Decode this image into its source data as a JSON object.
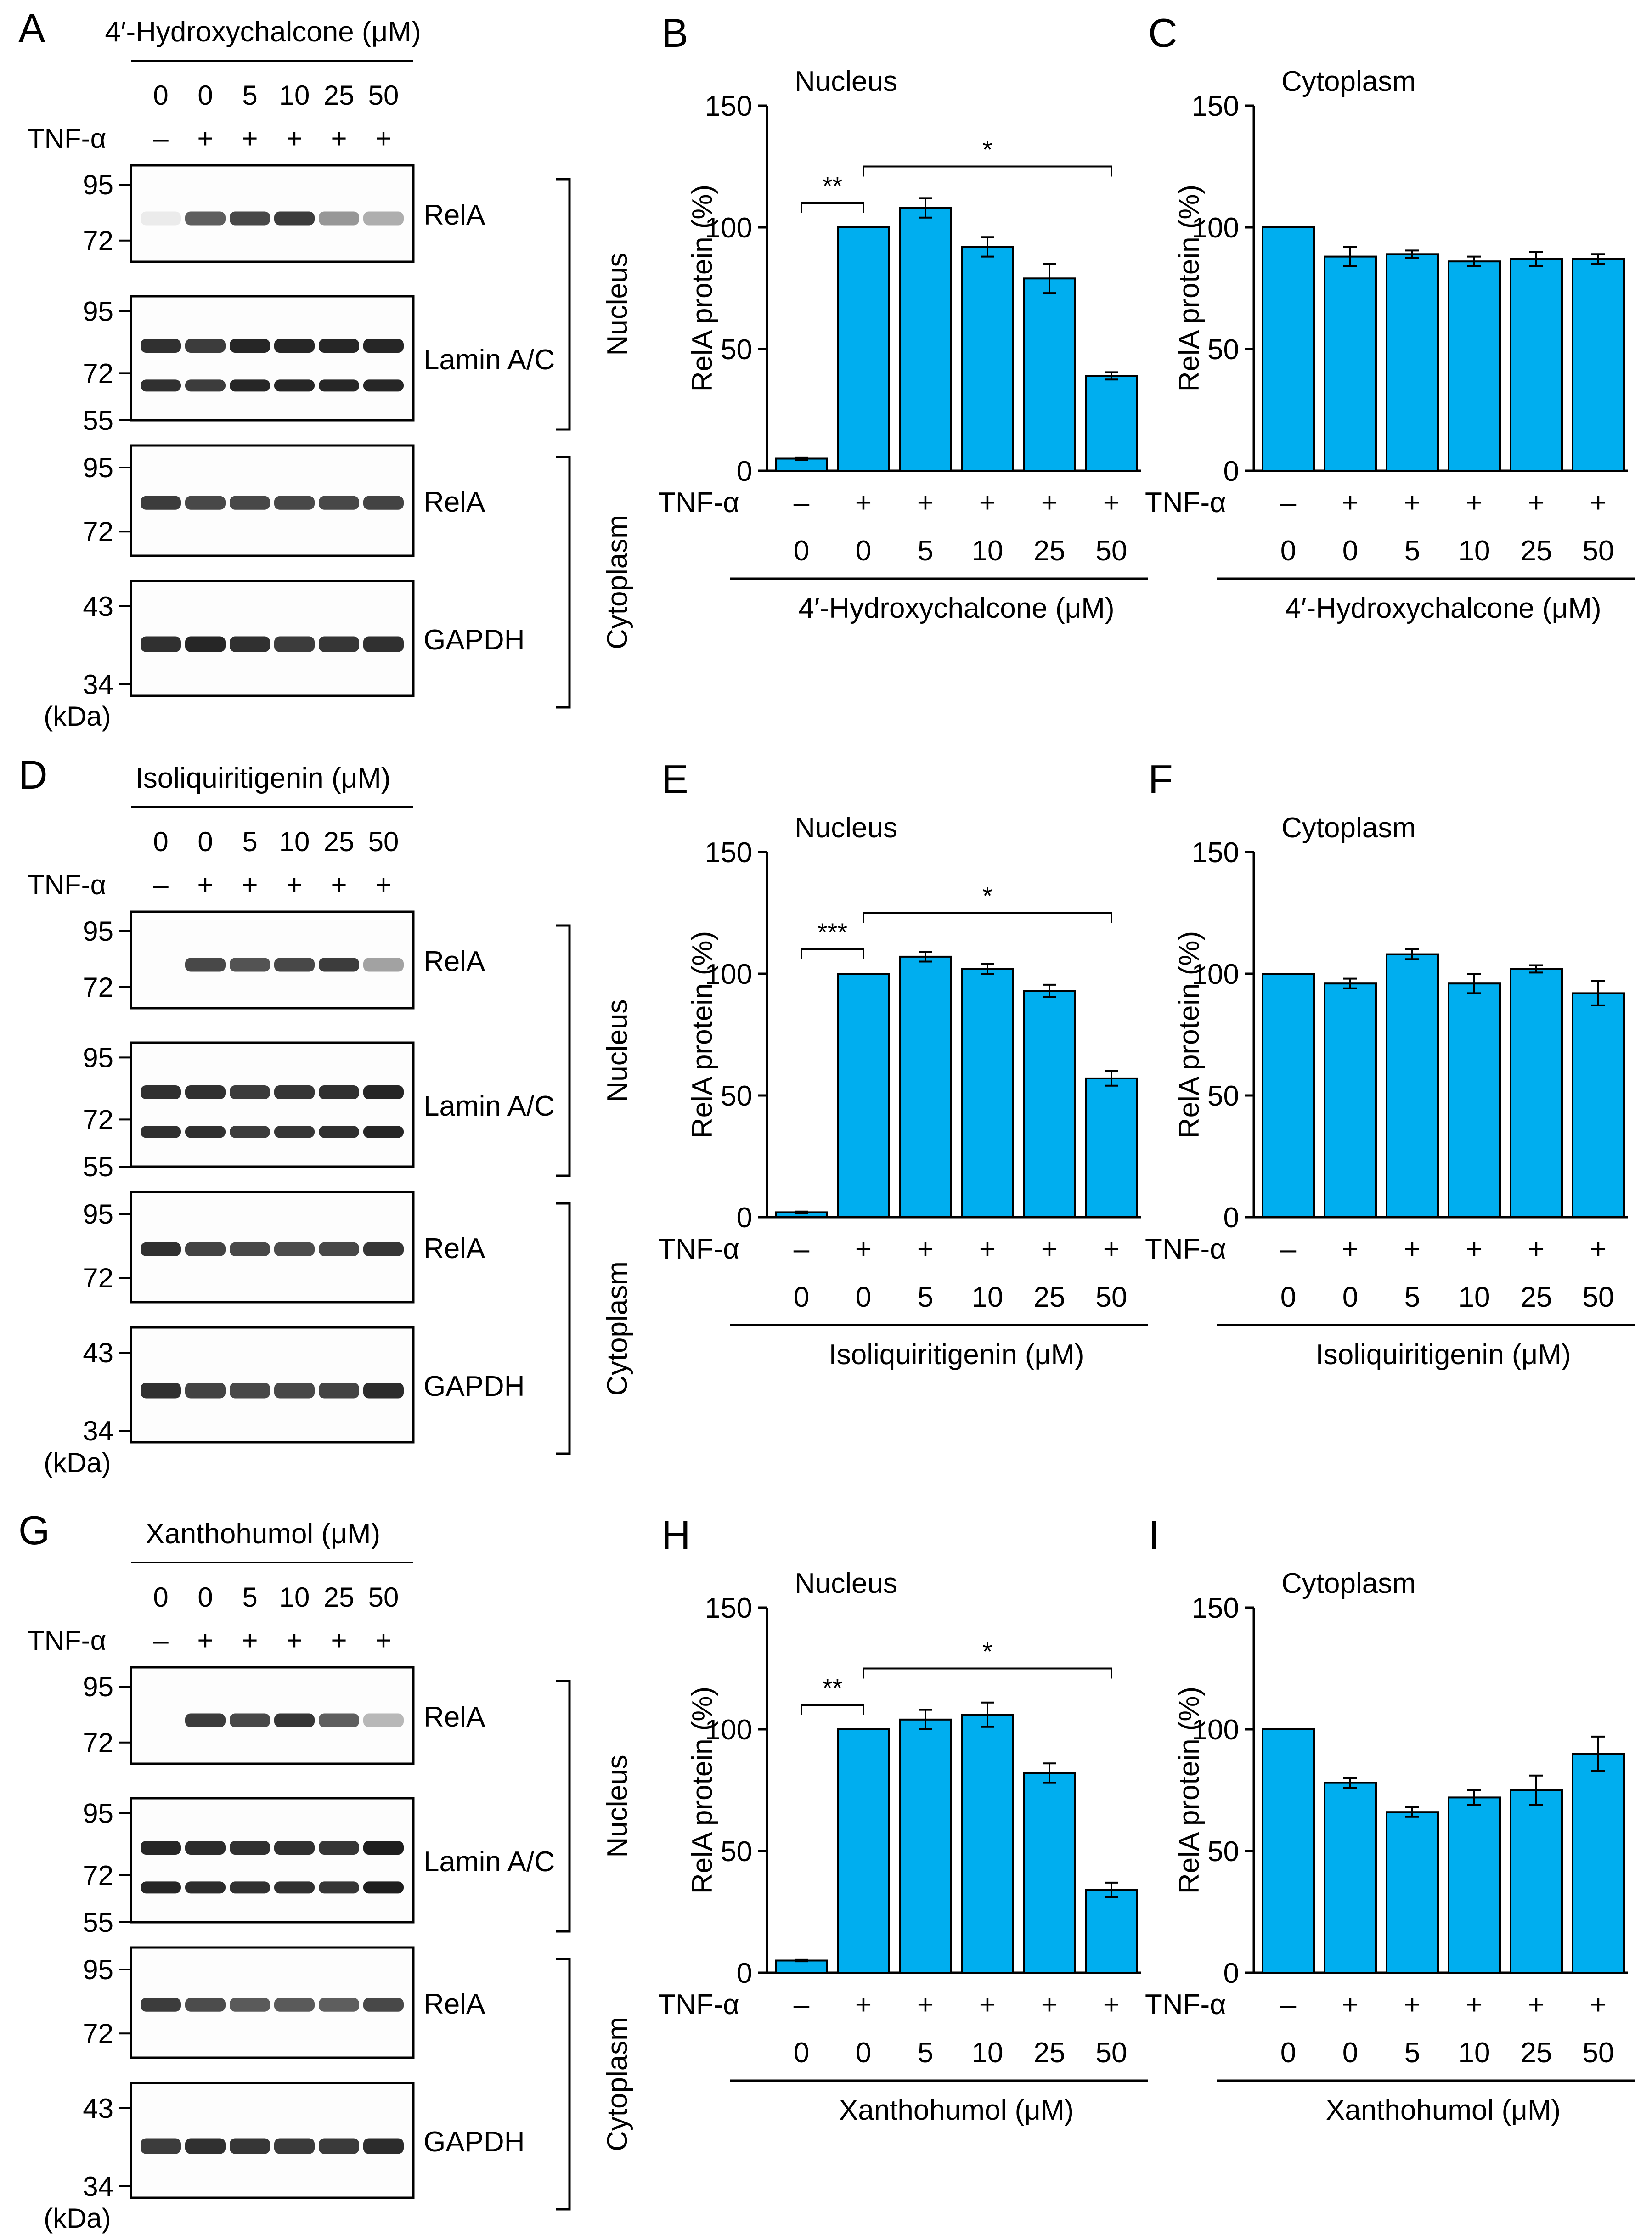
{
  "figure": {
    "blot_panels": [
      {
        "letter": "A",
        "compound": "4′-Hydroxychalcone (μM)",
        "doses": [
          "0",
          "0",
          "5",
          "10",
          "25",
          "50"
        ],
        "tnf_label": "TNF-α",
        "tnf_signs": [
          "–",
          "+",
          "+",
          "+",
          "+",
          "+"
        ],
        "kda_unit": "(kDa)",
        "nucleus_label": "Nucleus",
        "cytoplasm_label": "Cytoplasm",
        "blots": [
          {
            "protein": "RelA",
            "markers": [
              "95",
              "72"
            ],
            "band_intensity": [
              0.08,
              0.7,
              0.8,
              0.85,
              0.45,
              0.35
            ]
          },
          {
            "protein": "Lamin A/C",
            "markers": [
              "95",
              "72",
              "55"
            ],
            "band_intensity": [
              0.9,
              0.85,
              0.95,
              0.95,
              0.95,
              0.95
            ]
          },
          {
            "protein": "RelA",
            "markers": [
              "95",
              "72"
            ],
            "band_intensity": [
              0.85,
              0.8,
              0.8,
              0.8,
              0.8,
              0.82
            ]
          },
          {
            "protein": "GAPDH",
            "markers": [
              "43",
              "34"
            ],
            "band_intensity": [
              0.9,
              0.95,
              0.9,
              0.85,
              0.88,
              0.9
            ]
          }
        ]
      },
      {
        "letter": "D",
        "compound": "Isoliquiritigenin (μM)",
        "doses": [
          "0",
          "0",
          "5",
          "10",
          "25",
          "50"
        ],
        "tnf_label": "TNF-α",
        "tnf_signs": [
          "–",
          "+",
          "+",
          "+",
          "+",
          "+"
        ],
        "kda_unit": "(kDa)",
        "nucleus_label": "Nucleus",
        "cytoplasm_label": "Cytoplasm",
        "blots": [
          {
            "protein": "RelA",
            "markers": [
              "95",
              "72"
            ],
            "band_intensity": [
              0.0,
              0.8,
              0.75,
              0.8,
              0.85,
              0.4
            ]
          },
          {
            "protein": "Lamin A/C",
            "markers": [
              "95",
              "72",
              "55"
            ],
            "band_intensity": [
              0.9,
              0.9,
              0.85,
              0.88,
              0.9,
              0.95
            ]
          },
          {
            "protein": "RelA",
            "markers": [
              "95",
              "72"
            ],
            "band_intensity": [
              0.9,
              0.82,
              0.8,
              0.78,
              0.8,
              0.88
            ]
          },
          {
            "protein": "GAPDH",
            "markers": [
              "43",
              "34"
            ],
            "band_intensity": [
              0.9,
              0.82,
              0.8,
              0.8,
              0.82,
              0.92
            ]
          }
        ]
      },
      {
        "letter": "G",
        "compound": "Xanthohumol (μM)",
        "doses": [
          "0",
          "0",
          "5",
          "10",
          "25",
          "50"
        ],
        "tnf_label": "TNF-α",
        "tnf_signs": [
          "–",
          "+",
          "+",
          "+",
          "+",
          "+"
        ],
        "kda_unit": "(kDa)",
        "nucleus_label": "Nucleus",
        "cytoplasm_label": "Cytoplasm",
        "blots": [
          {
            "protein": "RelA",
            "markers": [
              "95",
              "72"
            ],
            "band_intensity": [
              0.0,
              0.85,
              0.8,
              0.88,
              0.7,
              0.3
            ]
          },
          {
            "protein": "Lamin A/C",
            "markers": [
              "95",
              "72",
              "55"
            ],
            "band_intensity": [
              0.95,
              0.92,
              0.9,
              0.9,
              0.88,
              0.98
            ]
          },
          {
            "protein": "RelA",
            "markers": [
              "95",
              "72"
            ],
            "band_intensity": [
              0.85,
              0.78,
              0.72,
              0.72,
              0.7,
              0.8
            ]
          },
          {
            "protein": "GAPDH",
            "markers": [
              "43",
              "34"
            ],
            "band_intensity": [
              0.85,
              0.9,
              0.88,
              0.86,
              0.86,
              0.92
            ]
          }
        ]
      }
    ]
  },
  "chart_data": [
    {
      "letter": "B",
      "type": "bar",
      "title": "Nucleus",
      "ylabel": "RelA protein (%)",
      "ylim": [
        0,
        150
      ],
      "yticks": [
        "0",
        "50",
        "100",
        "150"
      ],
      "tnf_label": "TNF-α",
      "tnf_signs": [
        "–",
        "+",
        "+",
        "+",
        "+",
        "+"
      ],
      "categories": [
        "0",
        "0",
        "5",
        "10",
        "25",
        "50"
      ],
      "values": [
        5,
        100,
        108,
        92,
        79,
        39
      ],
      "errors": [
        0.5,
        0,
        4,
        4,
        6,
        1.5
      ],
      "xlabel": "4′-Hydroxychalcone (μM)",
      "sig": [
        {
          "from": 0,
          "to": 1,
          "label": "**"
        },
        {
          "from": 1,
          "to": 5,
          "label": "*"
        }
      ]
    },
    {
      "letter": "C",
      "type": "bar",
      "title": "Cytoplasm",
      "ylabel": "RelA protein (%)",
      "ylim": [
        0,
        150
      ],
      "yticks": [
        "0",
        "50",
        "100",
        "150"
      ],
      "tnf_label": "TNF-α",
      "tnf_signs": [
        "–",
        "+",
        "+",
        "+",
        "+",
        "+"
      ],
      "categories": [
        "0",
        "0",
        "5",
        "10",
        "25",
        "50"
      ],
      "values": [
        100,
        88,
        89,
        86,
        87,
        87
      ],
      "errors": [
        0,
        4,
        1.5,
        2,
        3,
        2
      ],
      "xlabel": "4′-Hydroxychalcone (μM)",
      "sig": []
    },
    {
      "letter": "E",
      "type": "bar",
      "title": "Nucleus",
      "ylabel": "RelA protein (%)",
      "ylim": [
        0,
        150
      ],
      "yticks": [
        "0",
        "50",
        "100",
        "150"
      ],
      "tnf_label": "TNF-α",
      "tnf_signs": [
        "–",
        "+",
        "+",
        "+",
        "+",
        "+"
      ],
      "categories": [
        "0",
        "0",
        "5",
        "10",
        "25",
        "50"
      ],
      "values": [
        2,
        100,
        107,
        102,
        93,
        57
      ],
      "errors": [
        0.3,
        0,
        2,
        2,
        2.5,
        3
      ],
      "xlabel": "Isoliquiritigenin (μM)",
      "sig": [
        {
          "from": 0,
          "to": 1,
          "label": "***"
        },
        {
          "from": 1,
          "to": 5,
          "label": "*"
        }
      ]
    },
    {
      "letter": "F",
      "type": "bar",
      "title": "Cytoplasm",
      "ylabel": "RelA protein (%)",
      "ylim": [
        0,
        150
      ],
      "yticks": [
        "0",
        "50",
        "100",
        "150"
      ],
      "tnf_label": "TNF-α",
      "tnf_signs": [
        "–",
        "+",
        "+",
        "+",
        "+",
        "+"
      ],
      "categories": [
        "0",
        "0",
        "5",
        "10",
        "25",
        "50"
      ],
      "values": [
        100,
        96,
        108,
        96,
        102,
        92
      ],
      "errors": [
        0,
        2,
        2,
        4,
        1.5,
        5
      ],
      "xlabel": "Isoliquiritigenin (μM)",
      "sig": []
    },
    {
      "letter": "H",
      "type": "bar",
      "title": "Nucleus",
      "ylabel": "RelA protein (%)",
      "ylim": [
        0,
        150
      ],
      "yticks": [
        "0",
        "50",
        "100",
        "150"
      ],
      "tnf_label": "TNF-α",
      "tnf_signs": [
        "–",
        "+",
        "+",
        "+",
        "+",
        "+"
      ],
      "categories": [
        "0",
        "0",
        "5",
        "10",
        "25",
        "50"
      ],
      "values": [
        5,
        100,
        104,
        106,
        82,
        34
      ],
      "errors": [
        0.3,
        0,
        4,
        5,
        4,
        3
      ],
      "xlabel": "Xanthohumol (μM)",
      "sig": [
        {
          "from": 0,
          "to": 1,
          "label": "**"
        },
        {
          "from": 1,
          "to": 5,
          "label": "*"
        }
      ]
    },
    {
      "letter": "I",
      "type": "bar",
      "title": "Cytoplasm",
      "ylabel": "RelA protein (%)",
      "ylim": [
        0,
        150
      ],
      "yticks": [
        "0",
        "50",
        "100",
        "150"
      ],
      "tnf_label": "TNF-α",
      "tnf_signs": [
        "–",
        "+",
        "+",
        "+",
        "+",
        "+"
      ],
      "categories": [
        "0",
        "0",
        "5",
        "10",
        "25",
        "50"
      ],
      "values": [
        100,
        78,
        66,
        72,
        75,
        90
      ],
      "errors": [
        0,
        2,
        2,
        3,
        6,
        7
      ],
      "xlabel": "Xanthohumol (μM)",
      "sig": []
    }
  ],
  "style": {
    "bar_color": "#00AEEF",
    "bar_stroke": "#000000",
    "band_color": "#1a1a1a"
  }
}
